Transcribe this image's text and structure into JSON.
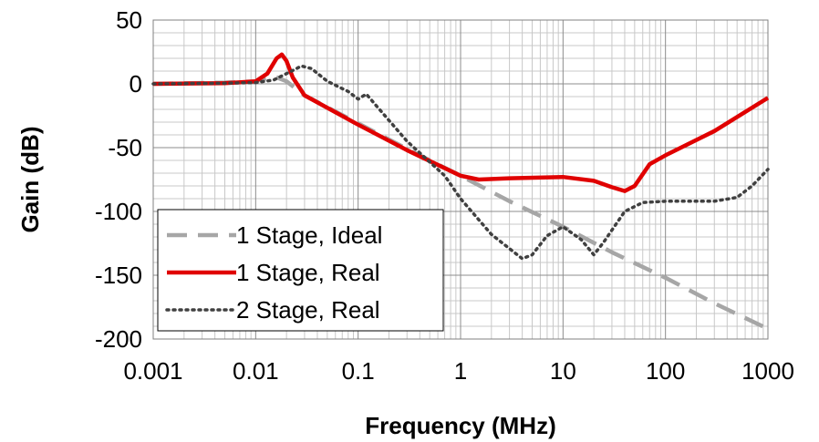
{
  "chart_data": {
    "type": "line",
    "xlabel": "Frequency (MHz)",
    "ylabel": "Gain (dB)",
    "xscale": "log",
    "xlim": [
      0.001,
      1000
    ],
    "ylim": [
      -200,
      50
    ],
    "x_ticks": [
      "0.001",
      "0.01",
      "0.1",
      "1",
      "10",
      "100",
      "1000"
    ],
    "y_ticks": [
      "50",
      "0",
      "-50",
      "-100",
      "-150",
      "-200"
    ],
    "grid": true,
    "legend_position": "bottom-left",
    "series": [
      {
        "name": "1 Stage, Ideal",
        "color": "#a6a6a6",
        "dash": "dashed",
        "points": [
          [
            0.001,
            0
          ],
          [
            0.005,
            1
          ],
          [
            0.01,
            2
          ],
          [
            0.015,
            6
          ],
          [
            0.02,
            2
          ],
          [
            0.03,
            -9
          ],
          [
            0.1,
            -31
          ],
          [
            0.3,
            -51
          ],
          [
            1,
            -72
          ],
          [
            3,
            -92
          ],
          [
            10,
            -112
          ],
          [
            30,
            -132
          ],
          [
            100,
            -152
          ],
          [
            300,
            -172
          ],
          [
            1000,
            -192
          ]
        ]
      },
      {
        "name": "1 Stage, Real",
        "color": "#e00000",
        "dash": "solid",
        "points": [
          [
            0.001,
            0
          ],
          [
            0.005,
            0.5
          ],
          [
            0.01,
            2
          ],
          [
            0.013,
            8
          ],
          [
            0.016,
            20
          ],
          [
            0.018,
            23
          ],
          [
            0.02,
            18
          ],
          [
            0.023,
            5
          ],
          [
            0.03,
            -9
          ],
          [
            0.1,
            -32
          ],
          [
            0.3,
            -52
          ],
          [
            1,
            -72
          ],
          [
            1.5,
            -75
          ],
          [
            3,
            -74
          ],
          [
            10,
            -73
          ],
          [
            20,
            -76
          ],
          [
            30,
            -81
          ],
          [
            40,
            -84
          ],
          [
            50,
            -80
          ],
          [
            70,
            -63
          ],
          [
            100,
            -56
          ],
          [
            300,
            -37
          ],
          [
            1000,
            -11
          ]
        ]
      },
      {
        "name": "2 Stage, Real",
        "color": "#404040",
        "dash": "dotted",
        "points": [
          [
            0.001,
            0
          ],
          [
            0.005,
            0.5
          ],
          [
            0.01,
            1
          ],
          [
            0.015,
            3
          ],
          [
            0.02,
            8
          ],
          [
            0.028,
            14
          ],
          [
            0.035,
            12
          ],
          [
            0.05,
            2
          ],
          [
            0.08,
            -6
          ],
          [
            0.1,
            -12
          ],
          [
            0.12,
            -8
          ],
          [
            0.15,
            -17
          ],
          [
            0.3,
            -45
          ],
          [
            0.7,
            -72
          ],
          [
            1,
            -90
          ],
          [
            2,
            -118
          ],
          [
            4,
            -137
          ],
          [
            5,
            -134
          ],
          [
            7,
            -119
          ],
          [
            10,
            -112
          ],
          [
            15,
            -122
          ],
          [
            20,
            -134
          ],
          [
            25,
            -124
          ],
          [
            40,
            -100
          ],
          [
            60,
            -93
          ],
          [
            100,
            -92
          ],
          [
            300,
            -92
          ],
          [
            500,
            -89
          ],
          [
            700,
            -80
          ],
          [
            1000,
            -67
          ]
        ]
      }
    ]
  }
}
